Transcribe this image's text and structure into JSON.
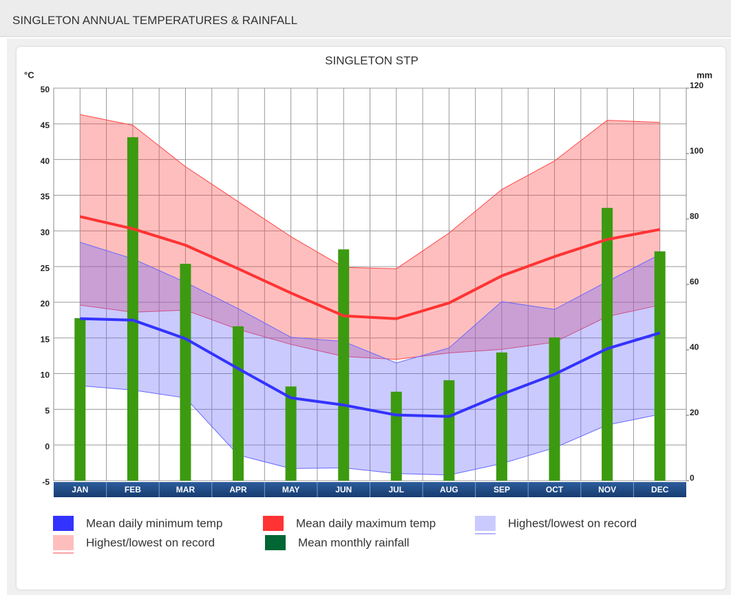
{
  "header": {
    "title": "SINGLETON ANNUAL TEMPERATURES & RAINFALL"
  },
  "chart_data": {
    "type": "climate",
    "title": "SINGLETON STP",
    "ylabel": "°C",
    "y2label": "mm",
    "categories": [
      "JAN",
      "FEB",
      "MAR",
      "APR",
      "MAY",
      "JUN",
      "JUL",
      "AUG",
      "SEP",
      "OCT",
      "NOV",
      "DEC"
    ],
    "ylim": [
      -5,
      50
    ],
    "yticks": [
      -5,
      0,
      5,
      10,
      15,
      20,
      25,
      30,
      35,
      40,
      45,
      50
    ],
    "y2lim": [
      0,
      120
    ],
    "y2ticks": [
      0,
      20,
      40,
      60,
      80,
      100,
      120
    ],
    "grid": true,
    "series": [
      {
        "name": "Mean daily minimum temp",
        "type": "line",
        "color": "#3333ff",
        "values": [
          17.7,
          17.5,
          14.9,
          10.7,
          6.6,
          5.6,
          4.2,
          4.0,
          7.1,
          9.9,
          13.5,
          15.7
        ]
      },
      {
        "name": "Mean daily maximum temp",
        "type": "line",
        "color": "#ff3333",
        "values": [
          32.0,
          30.3,
          28.0,
          24.7,
          21.3,
          18.1,
          17.7,
          19.9,
          23.7,
          26.4,
          28.8,
          30.2
        ]
      },
      {
        "name": "Highest/lowest on record",
        "type": "band",
        "color": "#6666ff",
        "high": [
          28.4,
          26.1,
          22.8,
          19.1,
          15.1,
          14.5,
          11.5,
          13.6,
          20.1,
          19.0,
          22.9,
          26.7
        ],
        "low": [
          8.3,
          7.7,
          6.6,
          -1.4,
          -3.3,
          -3.2,
          -4.0,
          -4.2,
          -2.6,
          -0.4,
          2.8,
          4.3
        ]
      },
      {
        "name": "Highest/lowest on record",
        "type": "band",
        "color": "#ff4444",
        "high": [
          46.3,
          44.8,
          39.0,
          34.1,
          29.2,
          24.9,
          24.7,
          29.7,
          35.8,
          39.8,
          45.5,
          45.2
        ],
        "low": [
          19.6,
          18.6,
          18.9,
          16.2,
          14.1,
          12.4,
          12.0,
          12.9,
          13.4,
          14.4,
          18.0,
          19.6
        ]
      },
      {
        "name": "Mean monthly rainfall",
        "type": "bar",
        "axis": "y2",
        "color": "#3c9a10",
        "legend_color": "#006633",
        "values": [
          49.7,
          105,
          66.3,
          47.2,
          28.8,
          70.7,
          27.2,
          30.7,
          39.2,
          43.8,
          83.4,
          70.1
        ]
      }
    ]
  }
}
